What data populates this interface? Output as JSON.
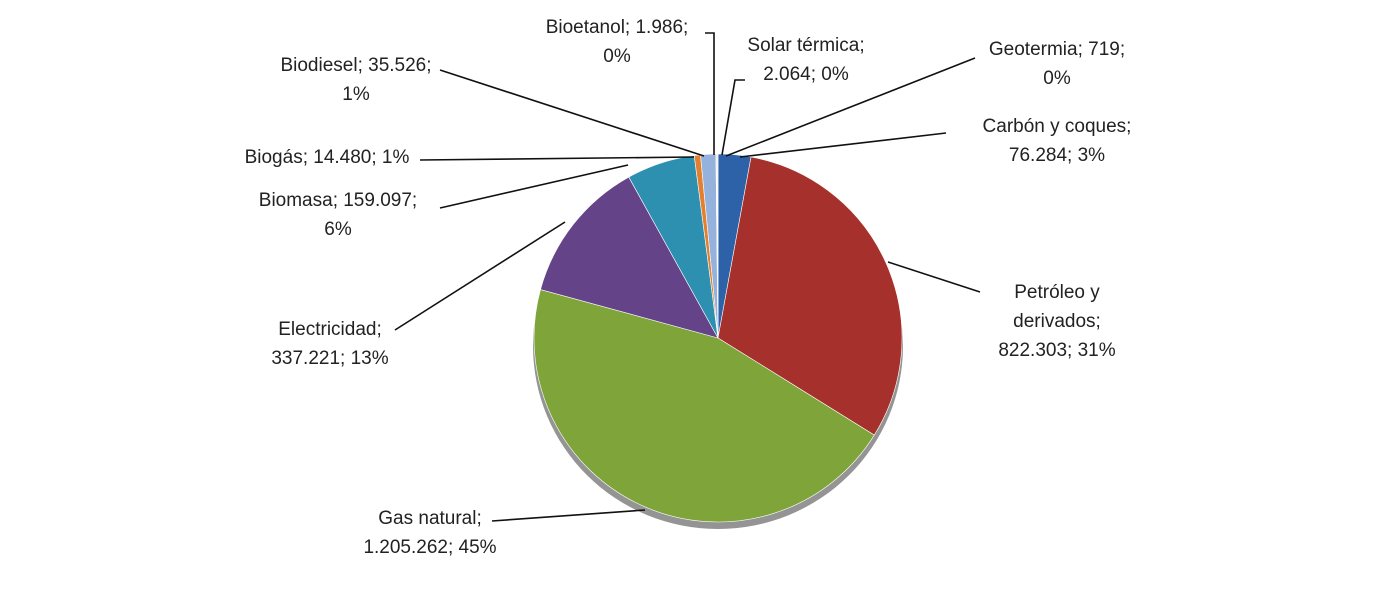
{
  "chart_data": {
    "type": "pie",
    "values": [
      76284,
      822303,
      1205262,
      337221,
      159097,
      14480,
      35526,
      1986,
      2064,
      719
    ],
    "value_labels": [
      [
        "Carbón y coques;",
        "76.284; 3%"
      ],
      [
        "Petróleo y",
        "derivados;",
        "822.303; 31%"
      ],
      [
        "Gas natural;",
        "1.205.262; 45%"
      ],
      [
        "Electricidad;",
        "337.221; 13%"
      ],
      [
        "Biomasa; 159.097;",
        "6%"
      ],
      [
        "Biogás; 14.480; 1%"
      ],
      [
        "Biodiesel; 35.526;",
        "1%"
      ],
      [
        "Bioetanol; 1.986;",
        "0%"
      ],
      [
        "Solar térmica;",
        "2.064; 0%"
      ],
      [
        "Geotermia; 719;",
        "0%"
      ]
    ],
    "colors": [
      "#2e62a8",
      "#a6302b",
      "#7ea43a",
      "#654389",
      "#2e90b0",
      "#e2802f",
      "#95b2dc",
      "#e8a0a0",
      "#c3d69b",
      "#b3a2c7"
    ]
  }
}
